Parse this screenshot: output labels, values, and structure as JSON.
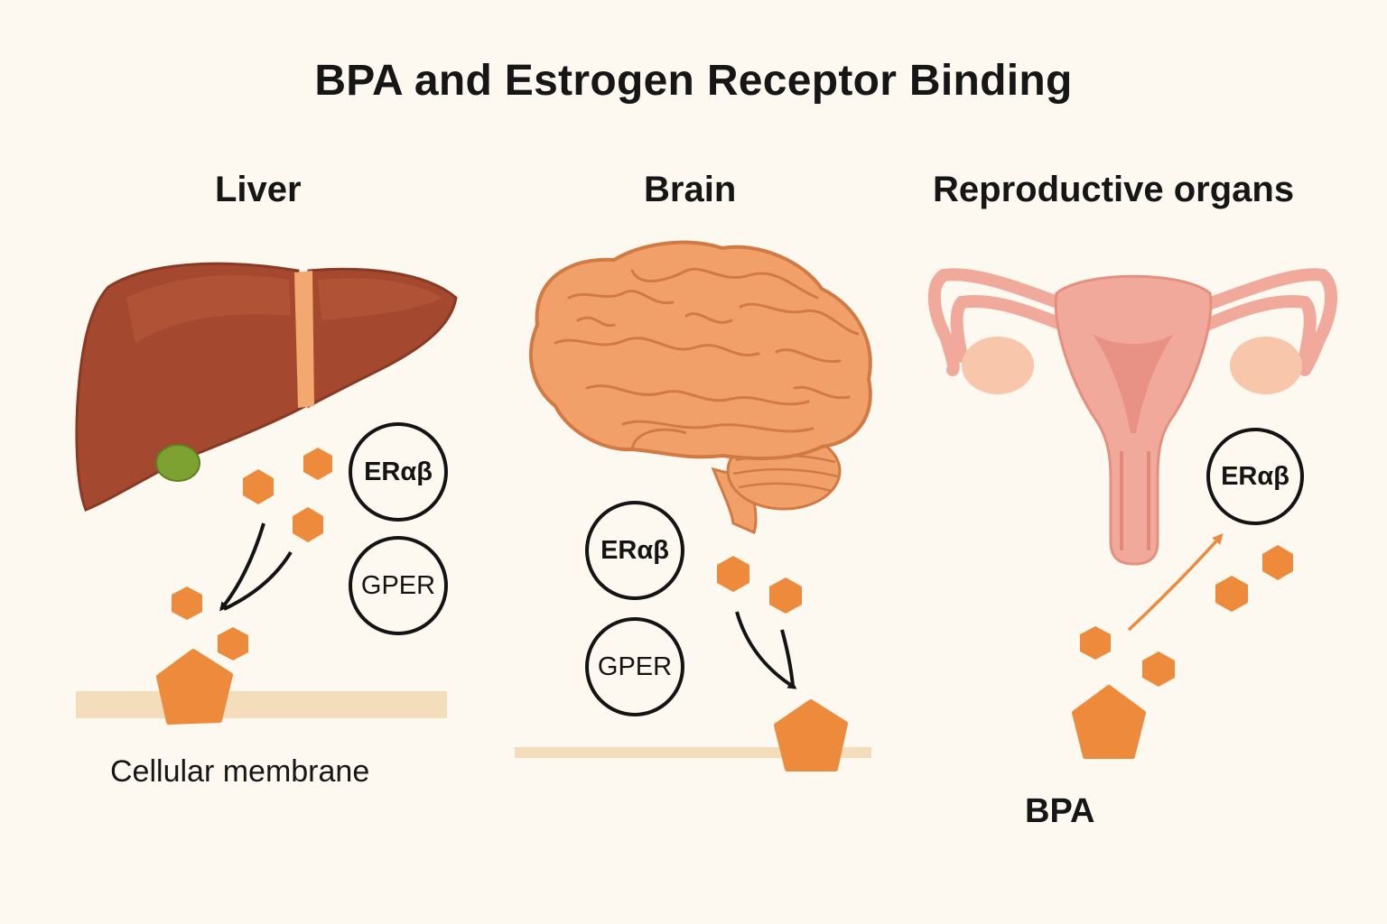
{
  "title": "BPA and Estrogen Receptor Binding",
  "organs": {
    "liver": "Liver",
    "brain": "Brain",
    "repro": "Reproductive organs"
  },
  "labels": {
    "membrane": "Cellular membrane",
    "bpa": "BPA"
  },
  "receptors": {
    "er": "ERαβ",
    "gper": "GPER"
  },
  "colors": {
    "background": "#fdf9f1",
    "bpa_orange": "#ee8a3c",
    "liver": "#a4492f",
    "brain": "#f2a06a",
    "uterus": "#f0a99b",
    "membrane": "#f3ddbb",
    "ink": "#141414"
  }
}
